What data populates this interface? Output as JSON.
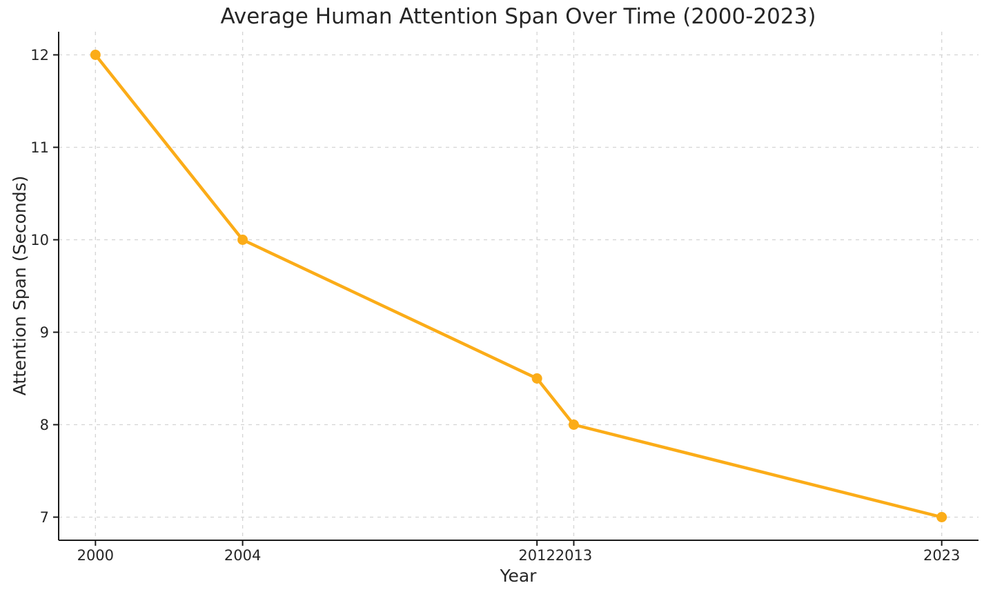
{
  "figure": {
    "background": "#ffffff"
  },
  "chart_data": {
    "type": "line",
    "title": "Average Human Attention Span Over Time (2000-2023)",
    "xlabel": "Year",
    "ylabel": "Attention Span (Seconds)",
    "series": [
      {
        "name": "Attention Span (Seconds)",
        "x": [
          2000,
          2004,
          2012,
          2013,
          2023
        ],
        "y": [
          12,
          10,
          8.5,
          8,
          7
        ]
      }
    ],
    "xticks": [
      2000,
      2004,
      2012,
      2013,
      2023
    ],
    "yticks": [
      7,
      8,
      9,
      10,
      11,
      12
    ],
    "xlim": [
      1999,
      2024
    ],
    "ylim": [
      6.75,
      12.25
    ],
    "grid": true,
    "grid_style": "dashed",
    "legend": false,
    "legend_position": "none",
    "colors": {
      "line": "#FBAC18",
      "marker": "#FBAC18",
      "grid": "#d4d4d4",
      "spine": "#1a1a1a",
      "text": "#262626",
      "background": "#ffffff"
    }
  }
}
